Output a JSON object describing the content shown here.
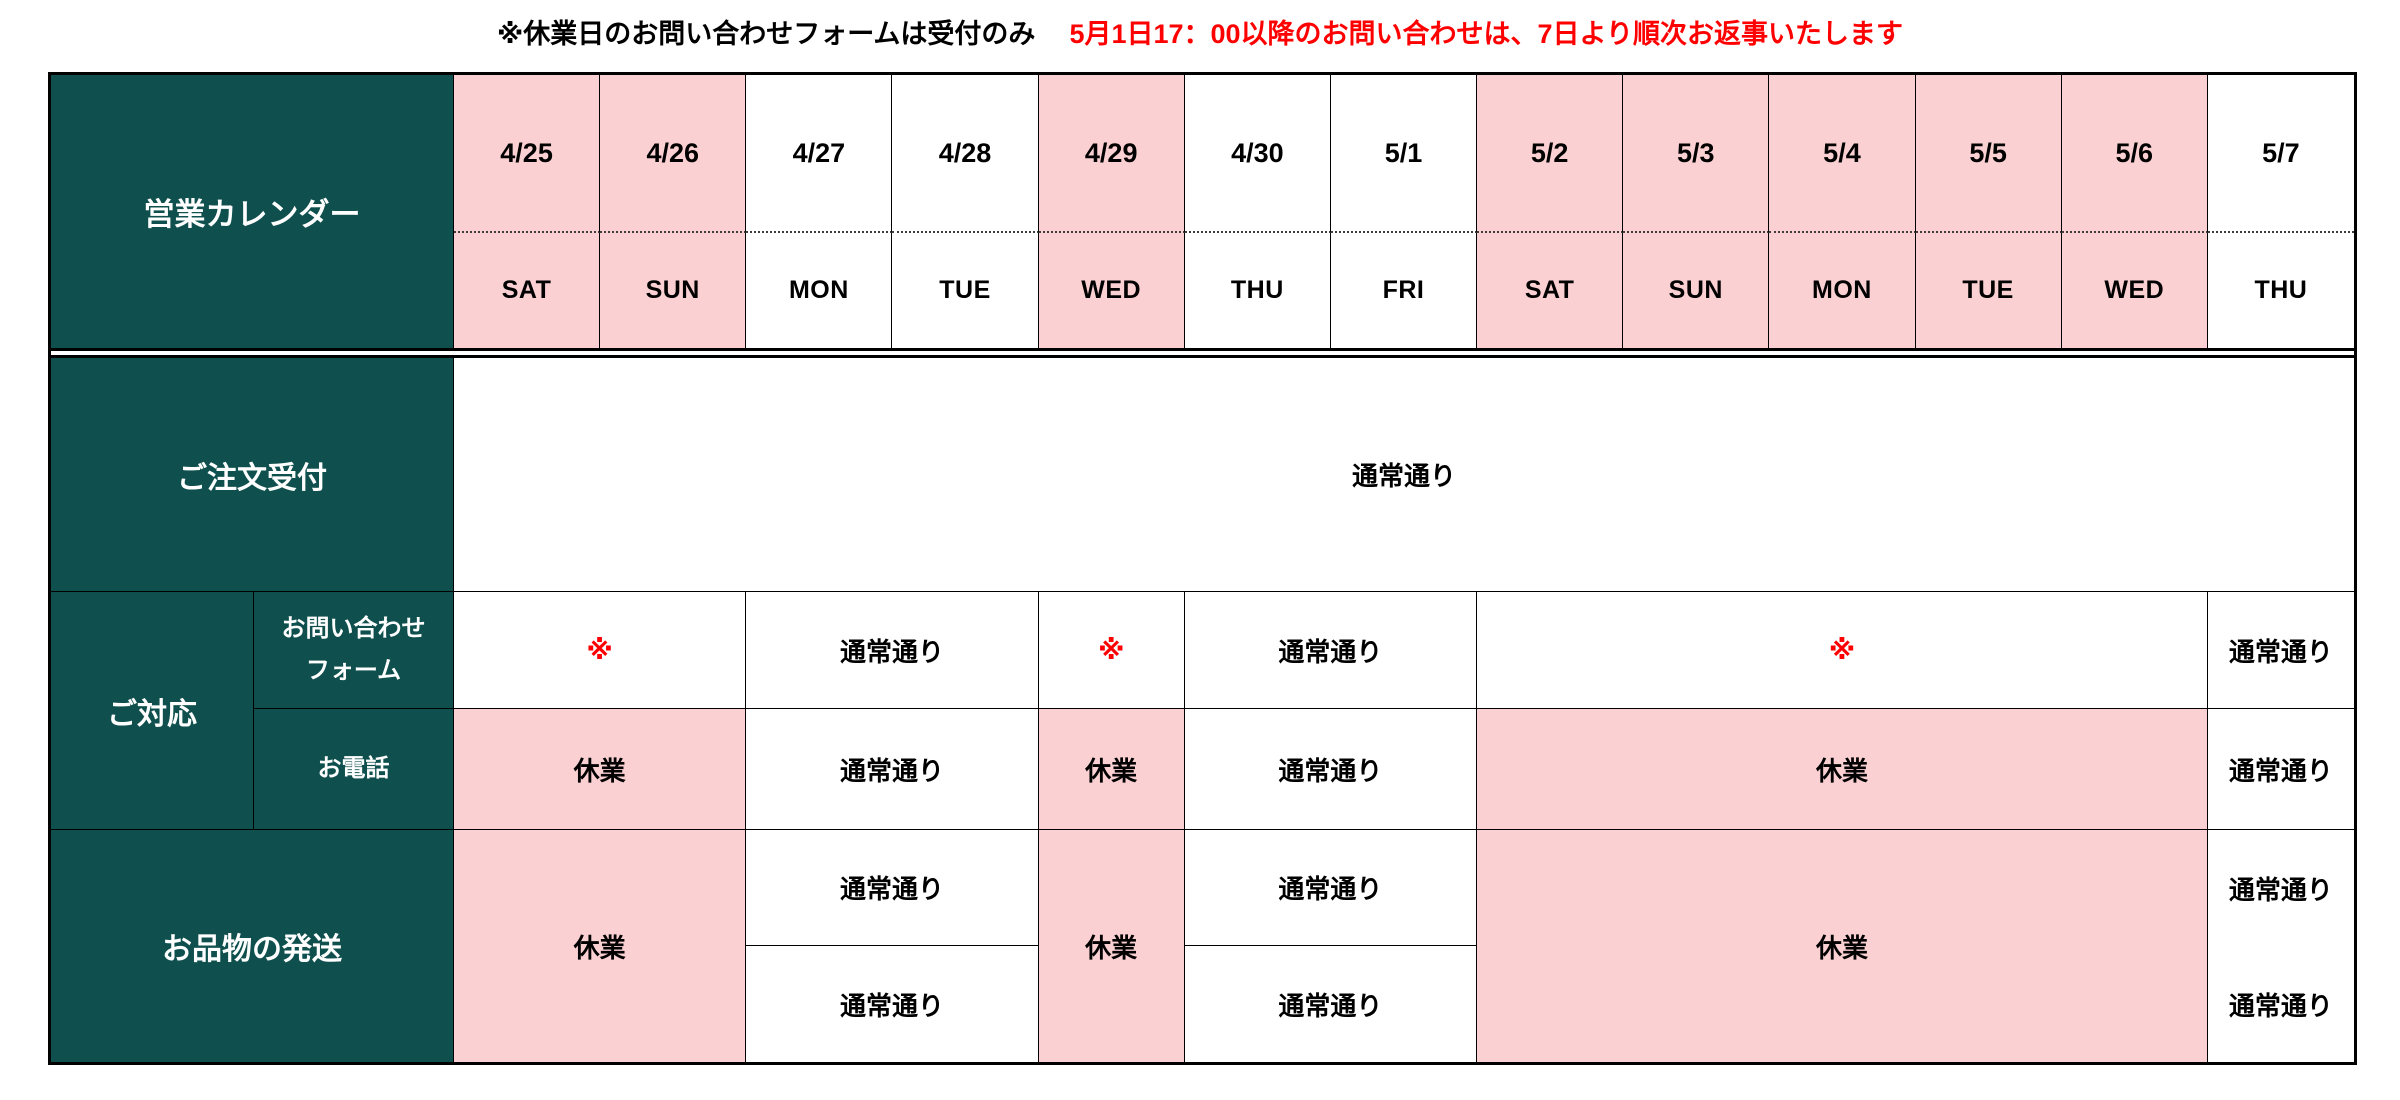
{
  "note": {
    "plain": "※休業日のお問い合わせフォームは受付のみ",
    "highlight": "5月1日17：00以降のお問い合わせは、7日より順次お返事いたします"
  },
  "colors": {
    "teal": "#0F504E",
    "pink": "#FBD0D3",
    "red": "#FF0000",
    "border": "#000000"
  },
  "calendar": {
    "title": "営業カレンダー",
    "days": [
      {
        "date": "4/25",
        "dow": "SAT",
        "holiday": true
      },
      {
        "date": "4/26",
        "dow": "SUN",
        "holiday": true
      },
      {
        "date": "4/27",
        "dow": "MON",
        "holiday": false
      },
      {
        "date": "4/28",
        "dow": "TUE",
        "holiday": false
      },
      {
        "date": "4/29",
        "dow": "WED",
        "holiday": true
      },
      {
        "date": "4/30",
        "dow": "THU",
        "holiday": false
      },
      {
        "date": "5/1",
        "dow": "FRI",
        "holiday": false
      },
      {
        "date": "5/2",
        "dow": "SAT",
        "holiday": true
      },
      {
        "date": "5/3",
        "dow": "SUN",
        "holiday": true
      },
      {
        "date": "5/4",
        "dow": "MON",
        "holiday": true
      },
      {
        "date": "5/5",
        "dow": "TUE",
        "holiday": true
      },
      {
        "date": "5/6",
        "dow": "WED",
        "holiday": true
      },
      {
        "date": "5/7",
        "dow": "THU",
        "holiday": false
      }
    ]
  },
  "rows": {
    "order": {
      "label": "ご注文受付",
      "cells": [
        {
          "span": 13,
          "text": "通常通り",
          "style": "normal"
        }
      ]
    },
    "response": {
      "label": "ご対応",
      "form": {
        "label_lines": [
          "お問い合わせ",
          "フォーム"
        ],
        "cells": [
          {
            "span": 2,
            "text": "※",
            "style": "note"
          },
          {
            "span": 2,
            "text": "通常通り",
            "style": "normal"
          },
          {
            "span": 1,
            "text": "※",
            "style": "note"
          },
          {
            "span": 2,
            "text": "通常通り",
            "style": "normal"
          },
          {
            "span": 5,
            "text": "※",
            "style": "note"
          },
          {
            "span": 1,
            "text": "通常通り",
            "style": "normal"
          }
        ]
      },
      "phone": {
        "label": "お電話",
        "cells": [
          {
            "span": 2,
            "text": "休業",
            "style": "closed"
          },
          {
            "span": 2,
            "text": "通常通り",
            "style": "normal"
          },
          {
            "span": 1,
            "text": "休業",
            "style": "closed"
          },
          {
            "span": 2,
            "text": "通常通り",
            "style": "normal"
          },
          {
            "span": 5,
            "text": "休業",
            "style": "closed"
          },
          {
            "span": 1,
            "text": "通常通り",
            "style": "normal"
          }
        ]
      }
    },
    "shipping": {
      "label": "お品物の発送",
      "cells": [
        {
          "span": 2,
          "kind": "closed",
          "text": "休業"
        },
        {
          "span": 2,
          "kind": "split",
          "texts": [
            "通常通り",
            "通常通り"
          ]
        },
        {
          "span": 1,
          "kind": "closed",
          "text": "休業"
        },
        {
          "span": 2,
          "kind": "split",
          "texts": [
            "通常通り",
            "通常通り"
          ]
        },
        {
          "span": 5,
          "kind": "closed",
          "text": "休業"
        },
        {
          "span": 1,
          "kind": "single_tall",
          "texts": [
            "通常通り",
            "通常通り"
          ]
        }
      ]
    }
  }
}
